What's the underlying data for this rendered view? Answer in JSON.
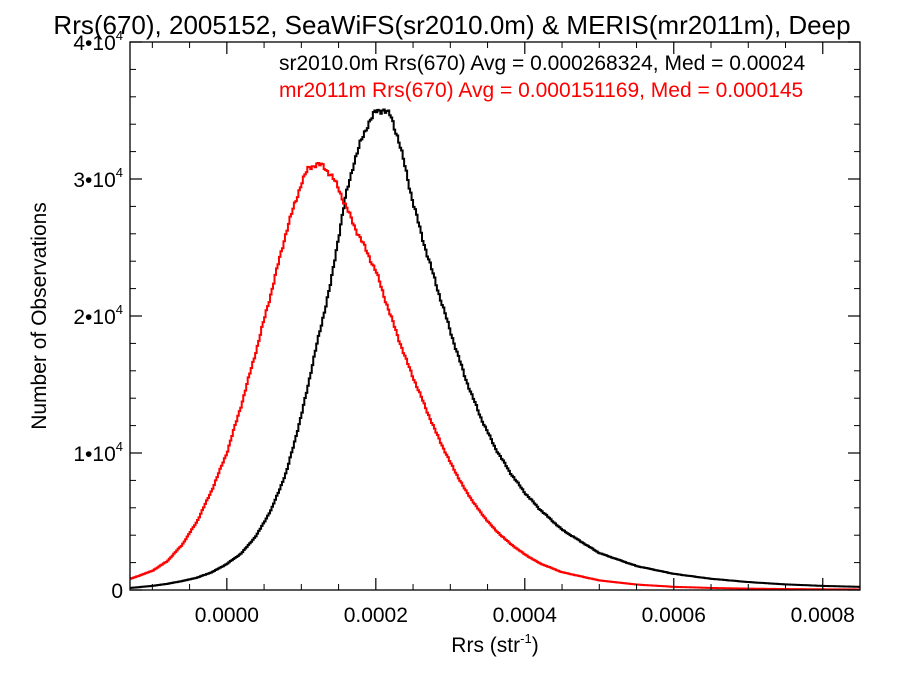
{
  "chart_data": {
    "type": "line",
    "title": "Rrs(670), 2005152, SeaWiFS(sr2010.0m) & MERIS(mr2011m), Deep",
    "xlabel": "Rrs (str",
    "xlabel_superscript": "-1",
    "xlabel_suffix": ")",
    "ylabel": "Number of Observations",
    "xlim": [
      -0.00013,
      0.00085
    ],
    "ylim": [
      0,
      40000
    ],
    "x_ticks": [
      {
        "value": 0.0,
        "label": "0.0000"
      },
      {
        "value": 0.0002,
        "label": "0.0002"
      },
      {
        "value": 0.0004,
        "label": "0.0004"
      },
      {
        "value": 0.0006,
        "label": "0.0006"
      },
      {
        "value": 0.0008,
        "label": "0.0008"
      }
    ],
    "y_ticks": [
      {
        "value": 0,
        "base": "0",
        "exp": ""
      },
      {
        "value": 10000,
        "base": "1•10",
        "exp": "4"
      },
      {
        "value": 20000,
        "base": "2•10",
        "exp": "4"
      },
      {
        "value": 30000,
        "base": "3•10",
        "exp": "4"
      },
      {
        "value": 40000,
        "base": "4•10",
        "exp": "4"
      }
    ],
    "legend_placement": "top-right",
    "grid": false,
    "step_style": "histogram",
    "series": [
      {
        "name": "sr2010.0m",
        "color": "#000000",
        "legend_text": "sr2010.0m Rrs(670) Avg = 0.000268324, Med = 0.00024",
        "x": [
          -0.00013,
          -0.0001,
          -8e-05,
          -6e-05,
          -4e-05,
          -2e-05,
          0.0,
          2e-05,
          4e-05,
          6e-05,
          8e-05,
          0.0001,
          0.00012,
          0.00014,
          0.00015,
          0.00016,
          0.00017,
          0.00018,
          0.00019,
          0.0002,
          0.00021,
          0.00022,
          0.00023,
          0.00024,
          0.00025,
          0.00026,
          0.00027,
          0.00028,
          0.0003,
          0.00032,
          0.00034,
          0.00036,
          0.00038,
          0.0004,
          0.00042,
          0.00045,
          0.0005,
          0.00055,
          0.0006,
          0.00065,
          0.0007,
          0.00075,
          0.0008,
          0.00085
        ],
        "y": [
          150,
          300,
          450,
          650,
          900,
          1300,
          1900,
          2700,
          4000,
          5900,
          8600,
          12700,
          17700,
          22500,
          25800,
          28800,
          31100,
          32700,
          34100,
          34900,
          35100,
          34600,
          33000,
          30700,
          28300,
          26200,
          24300,
          22500,
          18900,
          15500,
          12700,
          10400,
          8600,
          7100,
          5900,
          4400,
          2700,
          1750,
          1180,
          820,
          580,
          410,
          300,
          230
        ]
      },
      {
        "name": "mr2011m",
        "color": "#ff0000",
        "legend_text": "mr2011m Rrs(670) Avg = 0.000151169, Med = 0.000145",
        "x": [
          -0.00013,
          -0.0001,
          -8e-05,
          -6e-05,
          -4e-05,
          -2e-05,
          0.0,
          2e-05,
          4e-05,
          6e-05,
          8e-05,
          0.0001,
          0.00011,
          0.00012,
          0.00013,
          0.00014,
          0.00015,
          0.00016,
          0.00017,
          0.00018,
          0.0002,
          0.00022,
          0.00024,
          0.00026,
          0.00028,
          0.0003,
          0.00032,
          0.00034,
          0.00036,
          0.00038,
          0.0004,
          0.00042,
          0.00045,
          0.0005,
          0.00055,
          0.0006,
          0.00065,
          0.0007,
          0.00075,
          0.0008,
          0.00085
        ],
        "y": [
          800,
          1400,
          2100,
          3300,
          5000,
          7300,
          10000,
          13600,
          17600,
          21800,
          26200,
          29700,
          30800,
          31100,
          30900,
          30300,
          29300,
          28000,
          26700,
          25600,
          23300,
          20000,
          16900,
          14200,
          11600,
          9300,
          7300,
          5700,
          4400,
          3400,
          2600,
          1950,
          1300,
          700,
          400,
          230,
          150,
          100,
          70,
          50,
          40
        ]
      }
    ]
  }
}
